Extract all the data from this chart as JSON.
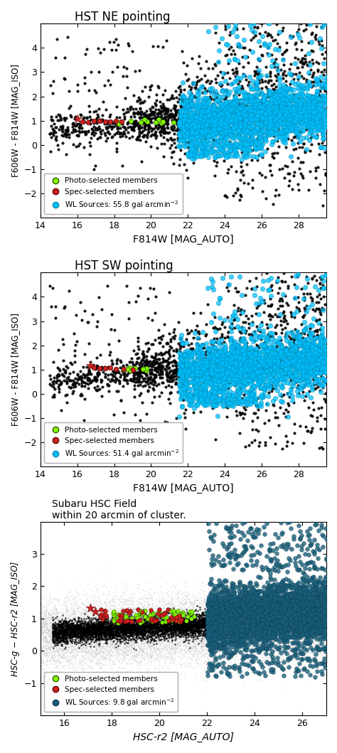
{
  "panel1": {
    "title": "HST NE pointing",
    "xlabel": "F814W [MAG_AUTO]",
    "ylabel": "F606W - F814W [MAG_ISO]",
    "xlim": [
      14,
      29.5
    ],
    "ylim": [
      -3,
      5
    ],
    "xticks": [
      14,
      16,
      18,
      20,
      22,
      24,
      26,
      28
    ],
    "yticks": [
      -2,
      -1,
      0,
      1,
      2,
      3,
      4
    ],
    "wl_density": 55.8,
    "wl_color": "#00BFFF",
    "photo_color": "#7fff00",
    "spec_color": "#cc2222"
  },
  "panel2": {
    "title": "HST SW pointing",
    "xlabel": "F814W [MAG_AUTO]",
    "ylabel": "F606W - F814W [MAG_ISO]",
    "xlim": [
      14,
      29.5
    ],
    "ylim": [
      -3,
      5
    ],
    "xticks": [
      14,
      16,
      18,
      20,
      22,
      24,
      26,
      28
    ],
    "yticks": [
      -2,
      -1,
      0,
      1,
      2,
      3,
      4
    ],
    "wl_density": 51.4,
    "wl_color": "#00BFFF",
    "photo_color": "#7fff00",
    "spec_color": "#cc2222"
  },
  "panel3": {
    "title": "Subaru HSC Field\nwithin 20 arcmin of cluster.",
    "xlabel": "HSC-r2 [MAG_AUTO]",
    "ylabel": "HSC-g − HSC-r2 [MAG_ISO]",
    "xlim": [
      15,
      27
    ],
    "ylim": [
      -2,
      4
    ],
    "xticks": [
      16,
      18,
      20,
      22,
      24,
      26
    ],
    "yticks": [
      -1,
      0,
      1,
      2,
      3
    ],
    "wl_density": 9.8,
    "wl_color": "#1a5f7a",
    "photo_color": "#7fff00",
    "spec_color": "#cc2222"
  }
}
